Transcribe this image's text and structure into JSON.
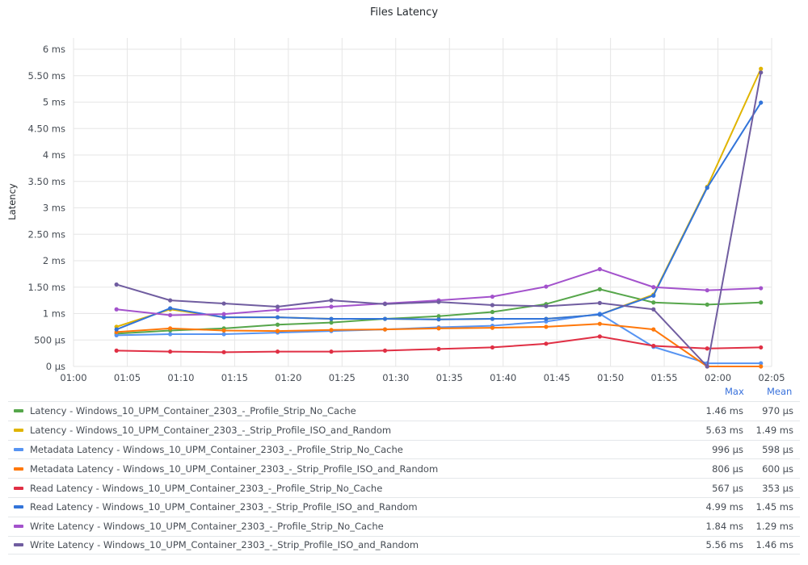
{
  "panel": {
    "title": "Files Latency"
  },
  "legend_headers": {
    "max": "Max",
    "mean": "Mean"
  },
  "chart_data": {
    "type": "line",
    "title": "Files Latency",
    "xlabel": "",
    "ylabel": "Latency",
    "x_ticks": [
      "01:00",
      "01:05",
      "01:10",
      "01:15",
      "01:20",
      "01:25",
      "01:30",
      "01:35",
      "01:40",
      "01:45",
      "01:50",
      "01:55",
      "02:00",
      "02:05"
    ],
    "y_ticks": [
      "0 µs",
      "500 µs",
      "1 ms",
      "1.50 ms",
      "2 ms",
      "2.50 ms",
      "3 ms",
      "3.50 ms",
      "4 ms",
      "4.50 ms",
      "5 ms",
      "5.50 ms",
      "6 ms"
    ],
    "ylim_ms": [
      0,
      6
    ],
    "x_range": [
      "01:00",
      "02:05"
    ],
    "grid": true,
    "legend_placement": "bottom",
    "x": [
      "01:04",
      "01:09",
      "01:14",
      "01:19",
      "01:24",
      "01:29",
      "01:34",
      "01:39",
      "01:44",
      "01:49",
      "01:54",
      "01:59",
      "02:04"
    ],
    "series": [
      {
        "name": "Latency - Windows_10_UPM_Container_2303_-_Profile_Strip_No_Cache",
        "color": "#56a64b",
        "max": "1.46 ms",
        "mean": "970 µs",
        "values_ms": [
          0.62,
          0.68,
          0.72,
          0.79,
          0.83,
          0.9,
          0.95,
          1.03,
          1.18,
          1.46,
          1.21,
          1.17,
          1.21
        ]
      },
      {
        "name": "Latency - Windows_10_UPM_Container_2303_-_Strip_Profile_ISO_and_Random",
        "color": "#e0b400",
        "max": "5.63 ms",
        "mean": "1.49 ms",
        "values_ms": [
          0.75,
          1.08,
          0.93,
          0.93,
          0.9,
          0.9,
          0.89,
          0.9,
          0.9,
          0.98,
          1.36,
          3.4,
          5.63
        ]
      },
      {
        "name": "Metadata Latency - Windows_10_UPM_Container_2303_-_Profile_Strip_No_Cache",
        "color": "#5794f2",
        "max": "996 µs",
        "mean": "598 µs",
        "values_ms": [
          0.59,
          0.61,
          0.61,
          0.64,
          0.67,
          0.7,
          0.74,
          0.77,
          0.85,
          0.996,
          0.37,
          0.06,
          0.06
        ]
      },
      {
        "name": "Metadata Latency - Windows_10_UPM_Container_2303_-_Strip_Profile_ISO_and_Random",
        "color": "#ff780a",
        "max": "806 µs",
        "mean": "600 µs",
        "values_ms": [
          0.65,
          0.72,
          0.68,
          0.67,
          0.69,
          0.7,
          0.72,
          0.73,
          0.75,
          0.806,
          0.7,
          0.0,
          0.0
        ]
      },
      {
        "name": "Read Latency - Windows_10_UPM_Container_2303_-_Profile_Strip_No_Cache",
        "color": "#e02f44",
        "max": "567 µs",
        "mean": "353 µs",
        "values_ms": [
          0.3,
          0.28,
          0.27,
          0.28,
          0.28,
          0.3,
          0.33,
          0.36,
          0.43,
          0.567,
          0.39,
          0.34,
          0.36
        ]
      },
      {
        "name": "Read Latency - Windows_10_UPM_Container_2303_-_Strip_Profile_ISO_and_Random",
        "color": "#3274d9",
        "max": "4.99 ms",
        "mean": "1.45 ms",
        "values_ms": [
          0.7,
          1.1,
          0.93,
          0.93,
          0.9,
          0.9,
          0.89,
          0.9,
          0.9,
          0.98,
          1.34,
          3.38,
          4.99
        ]
      },
      {
        "name": "Write Latency - Windows_10_UPM_Container_2303_-_Profile_Strip_No_Cache",
        "color": "#a352cc",
        "max": "1.84 ms",
        "mean": "1.29 ms",
        "values_ms": [
          1.08,
          0.97,
          0.99,
          1.07,
          1.13,
          1.19,
          1.25,
          1.32,
          1.51,
          1.84,
          1.5,
          1.44,
          1.48
        ]
      },
      {
        "name": "Write Latency - Windows_10_UPM_Container_2303_-_Strip_Profile_ISO_and_Random",
        "color": "#705da0",
        "max": "5.56 ms",
        "mean": "1.46 ms",
        "values_ms": [
          1.55,
          1.25,
          1.19,
          1.13,
          1.25,
          1.18,
          1.22,
          1.16,
          1.14,
          1.2,
          1.08,
          0.0,
          5.56
        ]
      }
    ]
  }
}
